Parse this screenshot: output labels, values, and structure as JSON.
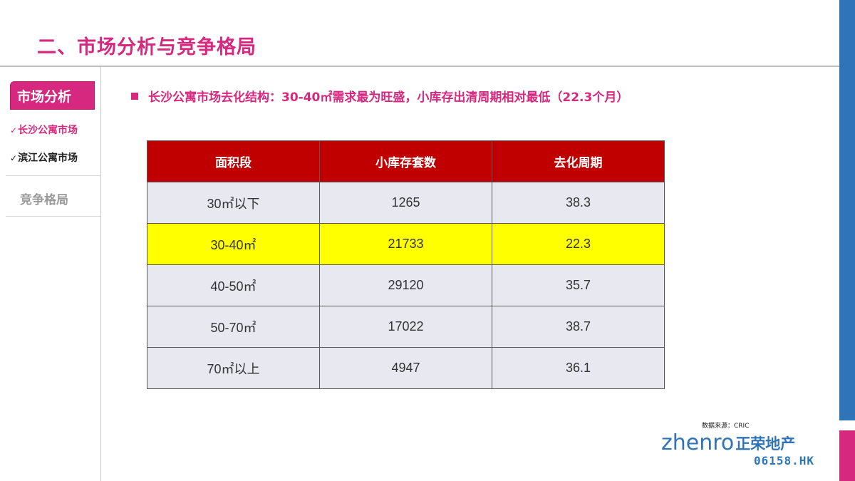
{
  "header": {
    "title": "二、市场分析与竞争格局"
  },
  "sidebar": {
    "active_section": "市场分析",
    "sub_items": [
      {
        "check": "✓",
        "label": "长沙公寓市场"
      },
      {
        "check": "✓",
        "label": "滨江公寓市场"
      }
    ],
    "inactive_section": "竞争格局"
  },
  "main": {
    "headline": "长沙公寓市场去化结构：30-40㎡需求最为旺盛，小库存出清周期相对最低（22.3个月）"
  },
  "table": {
    "columns": [
      "面积段",
      "小库存套数",
      "去化周期"
    ],
    "rows": [
      [
        "30㎡以下",
        "1265",
        "38.3"
      ],
      [
        "30-40㎡",
        "21733",
        "22.3"
      ],
      [
        "40-50㎡",
        "29120",
        "35.7"
      ],
      [
        "50-70㎡",
        "17022",
        "38.7"
      ],
      [
        "70㎡以上",
        "4947",
        "36.1"
      ]
    ],
    "highlight_row_index": 1,
    "colors": {
      "header_bg": "#c00000",
      "highlight_bg": "#ffff00",
      "row_bg": "#e8e8f0"
    }
  },
  "footer": {
    "source": "数据来源：CRIC",
    "logo_word": "zhenro",
    "logo_cn": "正荣地产",
    "ticker": "06158.HK"
  },
  "theme": {
    "accent": "#d6287f",
    "brand_blue": "#2f74b9"
  }
}
